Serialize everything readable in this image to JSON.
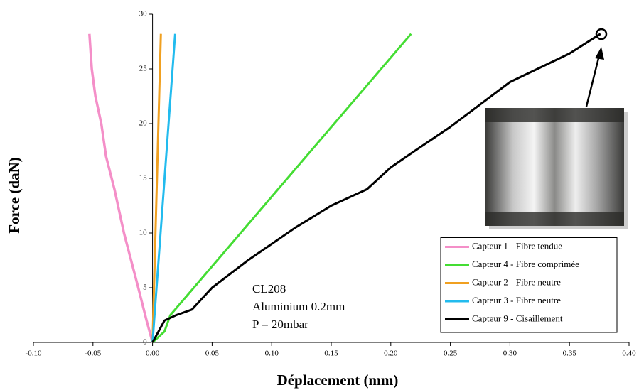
{
  "chart_data": {
    "type": "line",
    "x_label": "Déplacement (mm)",
    "y_label": "Force (daN)",
    "annotations": [
      "CL208",
      "Aluminium 0.2mm",
      "P = 20mbar"
    ],
    "xlim": [
      -0.1,
      0.4
    ],
    "ylim": [
      0,
      30
    ],
    "xticks": [
      {
        "value": -0.1,
        "label": "-0.10"
      },
      {
        "value": -0.05,
        "label": "-0.05"
      },
      {
        "value": 0,
        "label": "0.00"
      },
      {
        "value": 0.05,
        "label": "0.05"
      },
      {
        "value": 0.1,
        "label": "0.10"
      },
      {
        "value": 0.15,
        "label": "0.15"
      },
      {
        "value": 0.2,
        "label": "0.20"
      },
      {
        "value": 0.25,
        "label": "0.25"
      },
      {
        "value": 0.3,
        "label": "0.30"
      },
      {
        "value": 0.35,
        "label": "0.35"
      },
      {
        "value": 0.4,
        "label": "0.40"
      }
    ],
    "yticks": [
      0,
      5,
      10,
      15,
      20,
      25,
      30
    ],
    "grid": false,
    "legend": "lower right",
    "series": [
      {
        "name": "Capteur 1 - Fibre tendue",
        "color": "#f48fc8",
        "x": [
          0,
          -0.005,
          -0.012,
          -0.024,
          -0.032,
          -0.039,
          -0.043,
          -0.048,
          -0.051,
          -0.053
        ],
        "values": [
          0,
          2,
          5,
          10,
          14,
          17,
          20,
          22.5,
          25,
          28.2
        ]
      },
      {
        "name": "Capteur 4 - Fibre comprimée",
        "color": "#44dd33",
        "x": [
          0,
          0.01,
          0.015,
          0.217
        ],
        "values": [
          0,
          1,
          2.5,
          28.2
        ]
      },
      {
        "name": "Capteur 2 - Fibre neutre",
        "color": "#f0a020",
        "x": [
          0,
          0.007
        ],
        "values": [
          0,
          28.2
        ]
      },
      {
        "name": "Capteur 3 - Fibre neutre",
        "color": "#22bbee",
        "x": [
          0,
          0.019
        ],
        "values": [
          0,
          28.2
        ]
      },
      {
        "name": "Capteur 9 - Cisaillement",
        "color": "#000000",
        "x": [
          0,
          0.005,
          0.01,
          0.02,
          0.033,
          0.05,
          0.08,
          0.1,
          0.12,
          0.15,
          0.18,
          0.2,
          0.22,
          0.25,
          0.3,
          0.35,
          0.376
        ],
        "values": [
          0,
          1,
          2,
          2.5,
          3,
          5,
          7.5,
          9,
          10.5,
          12.5,
          14,
          16,
          17.5,
          19.7,
          23.8,
          26.4,
          28.2
        ]
      }
    ]
  }
}
